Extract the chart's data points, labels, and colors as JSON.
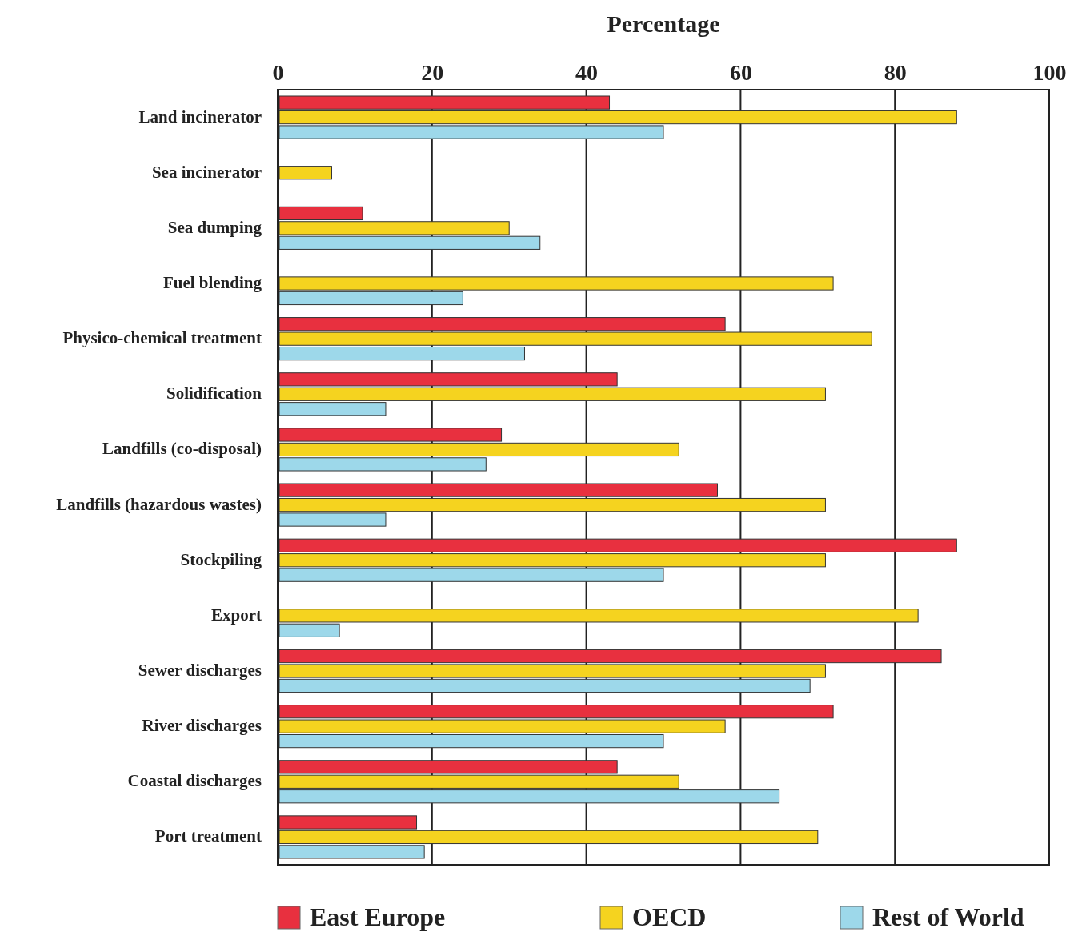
{
  "chart_data": {
    "type": "bar",
    "orientation": "horizontal",
    "xlabel": "Percentage",
    "categories": [
      "Land incinerator",
      "Sea incinerator",
      "Sea dumping",
      "Fuel blending",
      "Physico-chemical treatment",
      "Solidification",
      "Landfills (co-disposal)",
      "Landfills (hazardous wastes)",
      "Stockpiling",
      "Export",
      "Sewer discharges",
      "River discharges",
      "Coastal discharges",
      "Port treatment"
    ],
    "series": [
      {
        "name": "East Europe",
        "color": "#e8303f",
        "values": [
          43,
          null,
          11,
          null,
          58,
          44,
          29,
          57,
          88,
          null,
          86,
          72,
          44,
          18
        ]
      },
      {
        "name": "OECD",
        "color": "#f5d31f",
        "values": [
          88,
          7,
          30,
          72,
          77,
          71,
          52,
          71,
          71,
          83,
          71,
          58,
          52,
          70
        ]
      },
      {
        "name": "Rest of World",
        "color": "#9dd8ea",
        "values": [
          50,
          null,
          34,
          24,
          32,
          14,
          27,
          14,
          50,
          8,
          69,
          50,
          65,
          19
        ]
      }
    ],
    "xlim": [
      0,
      100
    ],
    "xticks": [
      0,
      20,
      40,
      60,
      80,
      100
    ],
    "grid": "x",
    "legend": "bottom"
  }
}
